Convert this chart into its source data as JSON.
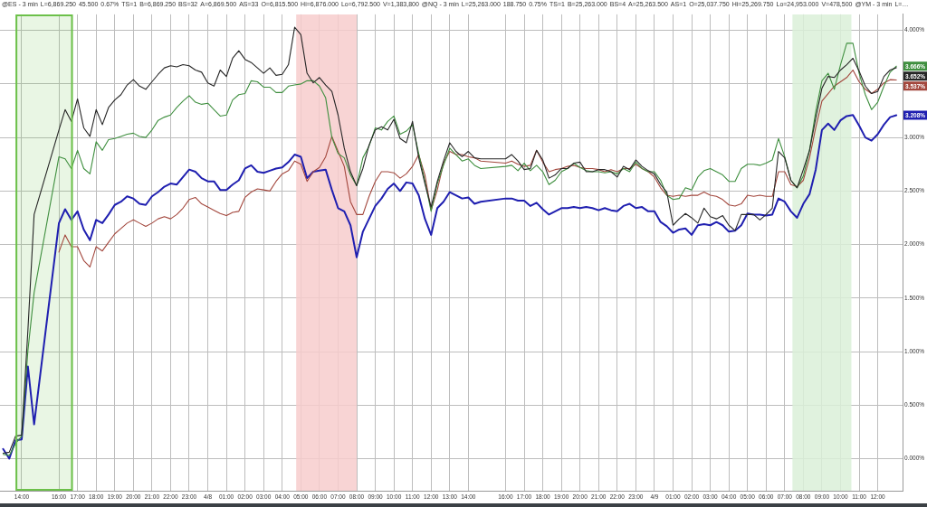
{
  "chart_data": {
    "type": "line",
    "annotations": [
      "@ES - 3 min",
      "L=6,869.250",
      "45.500",
      "0.67%",
      "TS=1",
      "B=6,869.250",
      "BS=32",
      "A=6,869.500",
      "AS=33",
      "O=6,815.500",
      "Hi=6,876.000",
      "Lo=6,792.500",
      "V=1,383,800",
      "@NQ - 3 min",
      "L=25,263.000",
      "188.750",
      "0.75%",
      "TS=1",
      "B=25,263.000",
      "BS=4",
      "A=25,263.500",
      "AS=1",
      "O=25,037.750",
      "Hi=25,269.750",
      "Lo=24,953.000",
      "V=478,500",
      "@YM - 3 min",
      "L=…"
    ],
    "x": [
      "--04-07T13:00",
      "--04-07T13:20",
      "--04-07T13:40",
      "--04-07T14:00",
      "--04-07T14:20",
      "--04-07T14:40",
      "--04-07T16:00",
      "--04-07T16:20",
      "--04-07T16:40",
      "--04-07T17:00",
      "--04-07T17:20",
      "--04-07T17:40",
      "--04-07T18:00",
      "--04-07T18:20",
      "--04-07T18:40",
      "--04-07T19:00",
      "--04-07T19:20",
      "--04-07T19:40",
      "--04-07T20:00",
      "--04-07T20:20",
      "--04-07T20:40",
      "--04-07T21:00",
      "--04-07T21:20",
      "--04-07T21:40",
      "--04-07T22:00",
      "--04-07T22:20",
      "--04-07T22:40",
      "--04-07T23:00",
      "--04-07T23:20",
      "--04-07T23:40",
      "--04-08T00:00",
      "--04-08T00:20",
      "--04-08T00:40",
      "--04-08T01:00",
      "--04-08T01:20",
      "--04-08T01:40",
      "--04-08T02:00",
      "--04-08T02:20",
      "--04-08T02:40",
      "--04-08T03:00",
      "--04-08T03:20",
      "--04-08T03:40",
      "--04-08T04:00",
      "--04-08T04:20",
      "--04-08T04:40",
      "--04-08T05:00",
      "--04-08T05:20",
      "--04-08T05:40",
      "--04-08T06:00",
      "--04-08T06:20",
      "--04-08T06:40",
      "--04-08T07:00",
      "--04-08T07:20",
      "--04-08T07:40",
      "--04-08T08:00",
      "--04-08T08:20",
      "--04-08T08:40",
      "--04-08T09:00",
      "--04-08T09:20",
      "--04-08T09:40",
      "--04-08T10:00",
      "--04-08T10:20",
      "--04-08T10:40",
      "--04-08T11:00",
      "--04-08T11:20",
      "--04-08T11:40",
      "--04-08T12:00",
      "--04-08T12:20",
      "--04-08T12:40",
      "--04-08T13:00",
      "--04-08T13:20",
      "--04-08T13:40",
      "--04-08T14:00",
      "--04-08T14:20",
      "--04-08T14:40",
      "--04-08T16:00",
      "--04-08T16:20",
      "--04-08T16:40",
      "--04-08T17:00",
      "--04-08T17:20",
      "--04-08T17:40",
      "--04-08T18:00",
      "--04-08T18:20",
      "--04-08T18:40",
      "--04-08T19:00",
      "--04-08T19:20",
      "--04-08T19:40",
      "--04-08T20:00",
      "--04-08T20:20",
      "--04-08T20:40",
      "--04-08T21:00",
      "--04-08T21:20",
      "--04-08T21:40",
      "--04-08T22:00",
      "--04-08T22:20",
      "--04-08T22:40",
      "--04-08T23:00",
      "--04-08T23:20",
      "--04-08T23:40",
      "--04-09T00:00",
      "--04-09T00:20",
      "--04-09T00:40",
      "--04-09T01:00",
      "--04-09T01:20",
      "--04-09T01:40",
      "--04-09T02:00",
      "--04-09T02:20",
      "--04-09T02:40",
      "--04-09T03:00",
      "--04-09T03:20",
      "--04-09T03:40",
      "--04-09T04:00",
      "--04-09T04:20",
      "--04-09T04:40",
      "--04-09T05:00",
      "--04-09T05:20",
      "--04-09T05:40",
      "--04-09T06:00",
      "--04-09T06:20",
      "--04-09T06:40",
      "--04-09T07:00",
      "--04-09T07:20",
      "--04-09T07:40",
      "--04-09T08:00",
      "--04-09T08:20",
      "--04-09T08:40",
      "--04-09T09:00",
      "--04-09T09:20",
      "--04-09T09:40",
      "--04-09T10:00",
      "--04-09T10:20",
      "--04-09T10:40",
      "--04-09T11:00",
      "--04-09T11:20",
      "--04-09T11:40",
      "--04-09T12:00",
      "--04-09T12:20",
      "--04-09T12:40",
      "--04-09T13:00"
    ],
    "series": [
      {
        "color": "#262626",
        "values": [
          0.05,
          0.06,
          0.21,
          0.22,
          1.2,
          2.28,
          3.07,
          3.26,
          3.15,
          3.36,
          3.09,
          3.01,
          3.26,
          3.12,
          3.28,
          3.35,
          3.4,
          3.49,
          3.54,
          3.48,
          3.45,
          3.52,
          3.59,
          3.65,
          3.67,
          3.66,
          3.68,
          3.67,
          3.63,
          3.61,
          3.51,
          3.48,
          3.63,
          3.57,
          3.74,
          3.81,
          3.73,
          3.7,
          3.65,
          3.6,
          3.65,
          3.58,
          3.59,
          3.68,
          4.03,
          3.96,
          3.6,
          3.51,
          3.56,
          3.49,
          3.43,
          3.21,
          2.9,
          2.68,
          2.55,
          2.71,
          2.93,
          3.07,
          3.1,
          3.07,
          3.17,
          2.99,
          2.95,
          3.15,
          2.81,
          2.57,
          2.35,
          2.59,
          2.78,
          2.95,
          2.87,
          2.82,
          2.87,
          2.81,
          2.8,
          2.8,
          2.84,
          2.78,
          2.7,
          2.71,
          2.88,
          2.79,
          2.62,
          2.65,
          2.71,
          2.71,
          2.76,
          2.77,
          2.68,
          2.68,
          2.7,
          2.7,
          2.68,
          2.63,
          2.73,
          2.7,
          2.79,
          2.73,
          2.69,
          2.66,
          2.56,
          2.49,
          2.18,
          2.24,
          2.29,
          2.25,
          2.2,
          2.34,
          2.26,
          2.24,
          2.27,
          2.18,
          2.13,
          2.28,
          2.28,
          2.28,
          2.23,
          2.28,
          2.34,
          2.87,
          2.81,
          2.6,
          2.53,
          2.7,
          2.88,
          3.18,
          3.46,
          3.57,
          3.56,
          3.63,
          3.68,
          3.74,
          3.62,
          3.48,
          3.41,
          3.43,
          3.57,
          3.63,
          3.652
        ],
        "value_labels": [
          null,
          null,
          null,
          null,
          null,
          null,
          null,
          null,
          null,
          null,
          null,
          null,
          null,
          null,
          null,
          null,
          null,
          null,
          null,
          null,
          null,
          null,
          null,
          null,
          null,
          null,
          null,
          null,
          null,
          null,
          null,
          null,
          null,
          null,
          null,
          null,
          null,
          null,
          null,
          null,
          null,
          null,
          null,
          null,
          null,
          null,
          null,
          null,
          null,
          null,
          null,
          null,
          null,
          null,
          null,
          null,
          null,
          null,
          null,
          null,
          null,
          null,
          null,
          null,
          null,
          null,
          null,
          null,
          null,
          null,
          null,
          null,
          null,
          null,
          null,
          null,
          null,
          null,
          null,
          null,
          null,
          null,
          null,
          null,
          null,
          null,
          null,
          null,
          null,
          null,
          null,
          null,
          null,
          null,
          null,
          null,
          null,
          null,
          null,
          null,
          null,
          null,
          null,
          null,
          null,
          null,
          null,
          null,
          null,
          null,
          null,
          null,
          null,
          null,
          null,
          null,
          null,
          null,
          null,
          null,
          null,
          null,
          null,
          null,
          null,
          null,
          null,
          null,
          null,
          null,
          null,
          null,
          null,
          null,
          null,
          null,
          null,
          null,
          "3.652%"
        ]
      },
      {
        "color": "#3f8f3f",
        "values": [
          0.04,
          0.03,
          0.14,
          0.21,
          1.01,
          1.55,
          2.82,
          2.8,
          2.71,
          2.88,
          2.71,
          2.66,
          2.96,
          2.88,
          2.98,
          2.99,
          3.01,
          3.03,
          3.04,
          3.01,
          3.0,
          3.07,
          3.16,
          3.19,
          3.21,
          3.28,
          3.34,
          3.39,
          3.33,
          3.31,
          3.32,
          3.26,
          3.2,
          3.21,
          3.35,
          3.4,
          3.41,
          3.53,
          3.52,
          3.47,
          3.47,
          3.42,
          3.42,
          3.48,
          3.49,
          3.5,
          3.53,
          3.53,
          3.48,
          3.37,
          3.0,
          2.85,
          2.81,
          2.65,
          2.55,
          2.81,
          2.92,
          3.09,
          3.07,
          3.15,
          3.2,
          3.03,
          3.06,
          3.12,
          2.85,
          2.59,
          2.31,
          2.57,
          2.74,
          2.9,
          2.84,
          2.78,
          2.8,
          2.74,
          2.71,
          2.73,
          2.74,
          2.69,
          2.76,
          2.69,
          2.74,
          2.68,
          2.56,
          2.6,
          2.68,
          2.71,
          2.76,
          2.72,
          2.69,
          2.68,
          2.68,
          2.67,
          2.68,
          2.66,
          2.71,
          2.68,
          2.77,
          2.71,
          2.68,
          2.68,
          2.6,
          2.46,
          2.42,
          2.43,
          2.53,
          2.51,
          2.63,
          2.69,
          2.71,
          2.68,
          2.65,
          2.59,
          2.59,
          2.71,
          2.75,
          2.75,
          2.74,
          2.76,
          2.79,
          2.99,
          2.82,
          2.6,
          2.53,
          2.64,
          2.88,
          3.24,
          3.53,
          3.6,
          3.45,
          3.68,
          3.88,
          3.88,
          3.6,
          3.4,
          3.26,
          3.33,
          3.48,
          3.61,
          3.666
        ],
        "value_labels": [
          null,
          null,
          null,
          null,
          null,
          null,
          null,
          null,
          null,
          null,
          null,
          null,
          null,
          null,
          null,
          null,
          null,
          null,
          null,
          null,
          null,
          null,
          null,
          null,
          null,
          null,
          null,
          null,
          null,
          null,
          null,
          null,
          null,
          null,
          null,
          null,
          null,
          null,
          null,
          null,
          null,
          null,
          null,
          null,
          null,
          null,
          null,
          null,
          null,
          null,
          null,
          null,
          null,
          null,
          null,
          null,
          null,
          null,
          null,
          null,
          null,
          null,
          null,
          null,
          null,
          null,
          null,
          null,
          null,
          null,
          null,
          null,
          null,
          null,
          null,
          null,
          null,
          null,
          null,
          null,
          null,
          null,
          null,
          null,
          null,
          null,
          null,
          null,
          null,
          null,
          null,
          null,
          null,
          null,
          null,
          null,
          null,
          null,
          null,
          null,
          null,
          null,
          null,
          null,
          null,
          null,
          null,
          null,
          null,
          null,
          null,
          null,
          null,
          null,
          null,
          null,
          null,
          null,
          null,
          null,
          null,
          null,
          null,
          null,
          null,
          null,
          null,
          null,
          null,
          null,
          null,
          null,
          null,
          null,
          null,
          null,
          null,
          null,
          "3.666%"
        ]
      },
      {
        "color": "#a3473d",
        "values": [
          null,
          null,
          null,
          null,
          null,
          null,
          1.93,
          2.09,
          1.98,
          1.98,
          1.85,
          1.79,
          1.98,
          1.94,
          2.02,
          2.1,
          2.15,
          2.2,
          2.23,
          2.2,
          2.17,
          2.2,
          2.24,
          2.26,
          2.24,
          2.28,
          2.34,
          2.42,
          2.44,
          2.38,
          2.35,
          2.32,
          2.29,
          2.27,
          2.3,
          2.31,
          2.44,
          2.49,
          2.52,
          2.51,
          2.5,
          2.59,
          2.66,
          2.69,
          2.78,
          2.75,
          2.59,
          2.68,
          2.72,
          2.82,
          3.01,
          2.87,
          2.73,
          2.4,
          2.28,
          2.28,
          2.45,
          2.59,
          2.68,
          2.68,
          2.67,
          2.62,
          2.66,
          2.73,
          2.84,
          2.65,
          2.32,
          2.51,
          2.76,
          2.87,
          2.84,
          2.84,
          2.82,
          2.81,
          2.78,
          2.76,
          2.78,
          2.75,
          2.73,
          2.74,
          2.88,
          2.77,
          2.68,
          2.7,
          2.71,
          2.73,
          2.74,
          2.72,
          2.71,
          2.71,
          2.7,
          2.68,
          2.7,
          2.68,
          2.71,
          2.71,
          2.75,
          2.71,
          2.68,
          2.63,
          2.53,
          2.46,
          2.45,
          2.46,
          2.45,
          2.46,
          2.46,
          2.49,
          2.46,
          2.45,
          2.42,
          2.37,
          2.36,
          2.38,
          2.46,
          2.45,
          2.46,
          2.45,
          2.45,
          2.68,
          2.68,
          2.56,
          2.54,
          2.6,
          2.81,
          3.09,
          3.34,
          3.41,
          3.48,
          3.52,
          3.56,
          3.63,
          3.52,
          3.45,
          3.41,
          3.45,
          3.51,
          3.54,
          3.537
        ],
        "value_labels": [
          null,
          null,
          null,
          null,
          null,
          null,
          null,
          null,
          null,
          null,
          null,
          null,
          null,
          null,
          null,
          null,
          null,
          null,
          null,
          null,
          null,
          null,
          null,
          null,
          null,
          null,
          null,
          null,
          null,
          null,
          null,
          null,
          null,
          null,
          null,
          null,
          null,
          null,
          null,
          null,
          null,
          null,
          null,
          null,
          null,
          null,
          null,
          null,
          null,
          null,
          null,
          null,
          null,
          null,
          null,
          null,
          null,
          null,
          null,
          null,
          null,
          null,
          null,
          null,
          null,
          null,
          null,
          null,
          null,
          null,
          null,
          null,
          null,
          null,
          null,
          null,
          null,
          null,
          null,
          null,
          null,
          null,
          null,
          null,
          null,
          null,
          null,
          null,
          null,
          null,
          null,
          null,
          null,
          null,
          null,
          null,
          null,
          null,
          null,
          null,
          null,
          null,
          null,
          null,
          null,
          null,
          null,
          null,
          null,
          null,
          null,
          null,
          null,
          null,
          null,
          null,
          null,
          null,
          null,
          null,
          null,
          null,
          null,
          null,
          null,
          null,
          null,
          null,
          null,
          null,
          null,
          null,
          null,
          null,
          null,
          null,
          null,
          null,
          "3.537%"
        ]
      },
      {
        "color": "#1f1fb0",
        "values": [
          0.09,
          0,
          0.17,
          0.18,
          0.86,
          0.32,
          2.2,
          2.33,
          2.23,
          2.31,
          2.14,
          2.04,
          2.23,
          2.2,
          2.28,
          2.37,
          2.4,
          2.45,
          2.43,
          2.38,
          2.37,
          2.45,
          2.49,
          2.54,
          2.57,
          2.56,
          2.63,
          2.7,
          2.68,
          2.62,
          2.59,
          2.59,
          2.51,
          2.51,
          2.56,
          2.6,
          2.71,
          2.74,
          2.68,
          2.67,
          2.69,
          2.71,
          2.72,
          2.77,
          2.84,
          2.82,
          2.62,
          2.68,
          2.69,
          2.7,
          2.51,
          2.34,
          2.31,
          2.18,
          1.88,
          2.12,
          2.24,
          2.36,
          2.43,
          2.52,
          2.57,
          2.5,
          2.58,
          2.57,
          2.46,
          2.24,
          2.09,
          2.34,
          2.4,
          2.49,
          2.46,
          2.43,
          2.44,
          2.38,
          2.4,
          2.43,
          2.43,
          2.41,
          2.41,
          2.36,
          2.39,
          2.33,
          2.28,
          2.31,
          2.34,
          2.34,
          2.35,
          2.34,
          2.35,
          2.34,
          2.32,
          2.34,
          2.32,
          2.31,
          2.36,
          2.38,
          2.34,
          2.35,
          2.31,
          2.31,
          2.21,
          2.17,
          2.11,
          2.14,
          2.15,
          2.09,
          2.18,
          2.19,
          2.18,
          2.21,
          2.18,
          2.12,
          2.13,
          2.18,
          2.29,
          2.28,
          2.28,
          2.27,
          2.28,
          2.43,
          2.4,
          2.31,
          2.25,
          2.38,
          2.47,
          2.7,
          3.07,
          3.13,
          3.07,
          3.16,
          3.2,
          3.21,
          3.11,
          3.0,
          2.97,
          3.03,
          3.12,
          3.19,
          3.208
        ],
        "value_labels": [
          null,
          null,
          null,
          null,
          null,
          null,
          null,
          null,
          null,
          null,
          null,
          null,
          null,
          null,
          null,
          null,
          null,
          null,
          null,
          null,
          null,
          null,
          null,
          null,
          null,
          null,
          null,
          null,
          null,
          null,
          null,
          null,
          null,
          null,
          null,
          null,
          null,
          null,
          null,
          null,
          null,
          null,
          null,
          null,
          null,
          null,
          null,
          null,
          null,
          null,
          null,
          null,
          null,
          null,
          null,
          null,
          null,
          null,
          null,
          null,
          null,
          null,
          null,
          null,
          null,
          null,
          null,
          null,
          null,
          null,
          null,
          null,
          null,
          null,
          null,
          null,
          null,
          null,
          null,
          null,
          null,
          null,
          null,
          null,
          null,
          null,
          null,
          null,
          null,
          null,
          null,
          null,
          null,
          null,
          null,
          null,
          null,
          null,
          null,
          null,
          null,
          null,
          null,
          null,
          null,
          null,
          null,
          null,
          null,
          null,
          null,
          null,
          null,
          null,
          null,
          null,
          null,
          null,
          null,
          null,
          null,
          null,
          null,
          null,
          null,
          null,
          null,
          null,
          null,
          null,
          null,
          null,
          null,
          null,
          null,
          null,
          null,
          null,
          "3.208%"
        ]
      }
    ],
    "xlim": [
      "--04-07T12:50",
      "--04-09T13:20"
    ],
    "xticks": [
      {
        "value": "--04-07T14:00",
        "label": "14:00"
      },
      {
        "value": "--04-07T16:00",
        "label": "16:00"
      },
      {
        "value": "--04-07T17:00",
        "label": "17:00"
      },
      {
        "value": "--04-07T18:00",
        "label": "18:00"
      },
      {
        "value": "--04-07T19:00",
        "label": "19:00"
      },
      {
        "value": "--04-07T20:00",
        "label": "20:00"
      },
      {
        "value": "--04-07T21:00",
        "label": "21:00"
      },
      {
        "value": "--04-07T22:00",
        "label": "22:00"
      },
      {
        "value": "--04-07T23:00",
        "label": "23:00"
      },
      {
        "value": "--04-08T00:00",
        "label": "4/8"
      },
      {
        "value": "--04-08T01:00",
        "label": "01:00"
      },
      {
        "value": "--04-08T02:00",
        "label": "02:00"
      },
      {
        "value": "--04-08T03:00",
        "label": "03:00"
      },
      {
        "value": "--04-08T04:00",
        "label": "04:00"
      },
      {
        "value": "--04-08T05:00",
        "label": "05:00"
      },
      {
        "value": "--04-08T06:00",
        "label": "06:00"
      },
      {
        "value": "--04-08T07:00",
        "label": "07:00"
      },
      {
        "value": "--04-08T08:00",
        "label": "08:00"
      },
      {
        "value": "--04-08T09:00",
        "label": "09:00"
      },
      {
        "value": "--04-08T10:00",
        "label": "10:00"
      },
      {
        "value": "--04-08T11:00",
        "label": "11:00"
      },
      {
        "value": "--04-08T12:00",
        "label": "12:00"
      },
      {
        "value": "--04-08T13:00",
        "label": "13:00"
      },
      {
        "value": "--04-08T14:00",
        "label": "14:00"
      },
      {
        "value": "--04-08T16:00",
        "label": "16:00"
      },
      {
        "value": "--04-08T17:00",
        "label": "17:00"
      },
      {
        "value": "--04-08T18:00",
        "label": "18:00"
      },
      {
        "value": "--04-08T19:00",
        "label": "19:00"
      },
      {
        "value": "--04-08T20:00",
        "label": "20:00"
      },
      {
        "value": "--04-08T21:00",
        "label": "21:00"
      },
      {
        "value": "--04-08T22:00",
        "label": "22:00"
      },
      {
        "value": "--04-08T23:00",
        "label": "23:00"
      },
      {
        "value": "--04-09T00:00",
        "label": "4/9"
      },
      {
        "value": "--04-09T01:00",
        "label": "01:00"
      },
      {
        "value": "--04-09T02:00",
        "label": "02:00"
      },
      {
        "value": "--04-09T03:00",
        "label": "03:00"
      },
      {
        "value": "--04-09T04:00",
        "label": "04:00"
      },
      {
        "value": "--04-09T05:00",
        "label": "05:00"
      },
      {
        "value": "--04-09T06:00",
        "label": "06:00"
      },
      {
        "value": "--04-09T07:00",
        "label": "07:00"
      },
      {
        "value": "--04-09T08:00",
        "label": "08:00"
      },
      {
        "value": "--04-09T09:00",
        "label": "09:00"
      },
      {
        "value": "--04-09T10:00",
        "label": "10:00"
      },
      {
        "value": "--04-09T11:00",
        "label": "11:00"
      },
      {
        "value": "--04-09T12:00",
        "label": "12:00"
      }
    ],
    "ylim": [
      -0.3,
      4.15
    ],
    "yticks": [
      {
        "value": 0,
        "label": "0.000%"
      },
      {
        "value": 0.5,
        "label": "0.500%"
      },
      {
        "value": 1,
        "label": "1.000%"
      },
      {
        "value": 1.5,
        "label": "1.500%"
      },
      {
        "value": 2,
        "label": "2.000%"
      },
      {
        "value": 2.5,
        "label": "2.500%"
      },
      {
        "value": 3,
        "label": "3.000%"
      },
      {
        "value": 3.5,
        "label": null
      },
      {
        "value": 4,
        "label": "4.000%"
      }
    ],
    "bands": [
      {
        "axis": "x",
        "from": "--04-08T04:45",
        "to": "--04-08T08:00",
        "color": "#f7cccc"
      },
      {
        "axis": "x",
        "from": "--04-09T07:25",
        "to": "--04-09T10:35",
        "color": "#dbf0d8"
      },
      {
        "axis": "x",
        "from": "--04-07T13:40",
        "to": "--04-07T16:45",
        "color": "#6cc04a"
      }
    ],
    "grid": true
  }
}
